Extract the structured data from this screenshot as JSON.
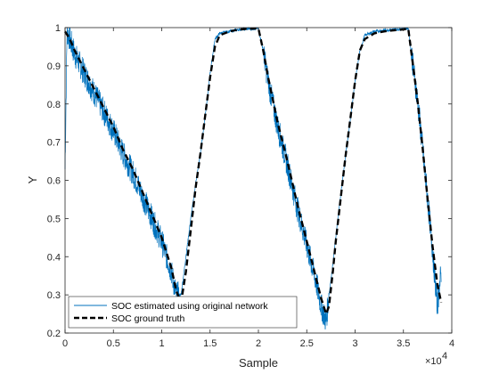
{
  "chart_data": {
    "type": "line",
    "title": "",
    "xlabel": "Sample",
    "ylabel": "Y",
    "xlim": [
      0,
      40000
    ],
    "ylim": [
      0.2,
      1.0
    ],
    "x_exponent_label": "×10",
    "x_exponent": "4",
    "x_ticks": [
      0,
      5000,
      10000,
      15000,
      20000,
      25000,
      30000,
      35000,
      40000
    ],
    "x_tick_labels": [
      "0",
      "0.5",
      "1",
      "1.5",
      "2",
      "2.5",
      "3",
      "3.5",
      "4"
    ],
    "y_ticks": [
      0.2,
      0.3,
      0.4,
      0.5,
      0.6,
      0.7,
      0.8,
      0.9,
      1.0
    ],
    "y_tick_labels": [
      "0.2",
      "0.3",
      "0.4",
      "0.5",
      "0.6",
      "0.7",
      "0.8",
      "0.9",
      "1"
    ],
    "grid": false,
    "legend_position": "bottom-left",
    "series": [
      {
        "name": "SOC estimated using original network",
        "color": "#0072BD",
        "style": "solid",
        "x": [
          0,
          200,
          500,
          1000,
          2000,
          3000,
          4000,
          5000,
          6000,
          7000,
          8000,
          9000,
          10000,
          11000,
          11500,
          12000,
          12500,
          13000,
          13500,
          14000,
          14500,
          15000,
          15500,
          16000,
          17000,
          18000,
          19000,
          20000,
          20500,
          21000,
          21500,
          22000,
          23000,
          24000,
          25000,
          26000,
          26500,
          27000,
          27300,
          27700,
          28000,
          28500,
          29000,
          29500,
          30000,
          30500,
          31000,
          32000,
          33000,
          34000,
          35000,
          35500,
          36000,
          36500,
          37000,
          37500,
          38000,
          38500,
          38900
        ],
        "y": [
          0.63,
          0.99,
          0.97,
          0.93,
          0.88,
          0.83,
          0.78,
          0.73,
          0.67,
          0.62,
          0.56,
          0.5,
          0.44,
          0.36,
          0.3,
          0.3,
          0.4,
          0.5,
          0.59,
          0.67,
          0.77,
          0.88,
          0.97,
          0.985,
          0.99,
          0.995,
          0.997,
          0.998,
          0.94,
          0.86,
          0.8,
          0.74,
          0.64,
          0.53,
          0.43,
          0.33,
          0.27,
          0.23,
          0.3,
          0.38,
          0.45,
          0.56,
          0.66,
          0.76,
          0.86,
          0.94,
          0.98,
          0.99,
          0.993,
          0.995,
          0.997,
          0.998,
          0.9,
          0.8,
          0.68,
          0.55,
          0.42,
          0.27,
          0.36
        ]
      },
      {
        "name": "SOC ground truth",
        "color": "#000000",
        "style": "dashed",
        "x": [
          0,
          500,
          1000,
          2000,
          3000,
          4000,
          5000,
          6000,
          7000,
          8000,
          9000,
          10000,
          11000,
          11500,
          12000,
          12500,
          13000,
          13500,
          14000,
          14500,
          15000,
          15500,
          16000,
          17000,
          18000,
          19000,
          20000,
          20500,
          21000,
          21500,
          22000,
          23000,
          24000,
          25000,
          26000,
          26500,
          27000,
          27300,
          27700,
          28000,
          28500,
          29000,
          29500,
          30000,
          30500,
          31000,
          32000,
          33000,
          34000,
          35000,
          35500,
          36000,
          36500,
          37000,
          37500,
          38000,
          38500,
          38900
        ],
        "y": [
          0.99,
          0.97,
          0.94,
          0.89,
          0.84,
          0.79,
          0.74,
          0.68,
          0.63,
          0.57,
          0.51,
          0.45,
          0.37,
          0.31,
          0.28,
          0.36,
          0.47,
          0.58,
          0.67,
          0.77,
          0.87,
          0.95,
          0.98,
          0.99,
          0.995,
          0.997,
          0.998,
          0.94,
          0.87,
          0.81,
          0.75,
          0.65,
          0.54,
          0.44,
          0.34,
          0.29,
          0.25,
          0.27,
          0.36,
          0.44,
          0.55,
          0.66,
          0.76,
          0.86,
          0.94,
          0.97,
          0.985,
          0.99,
          0.993,
          0.995,
          0.997,
          0.9,
          0.8,
          0.68,
          0.55,
          0.43,
          0.33,
          0.28
        ]
      }
    ]
  }
}
